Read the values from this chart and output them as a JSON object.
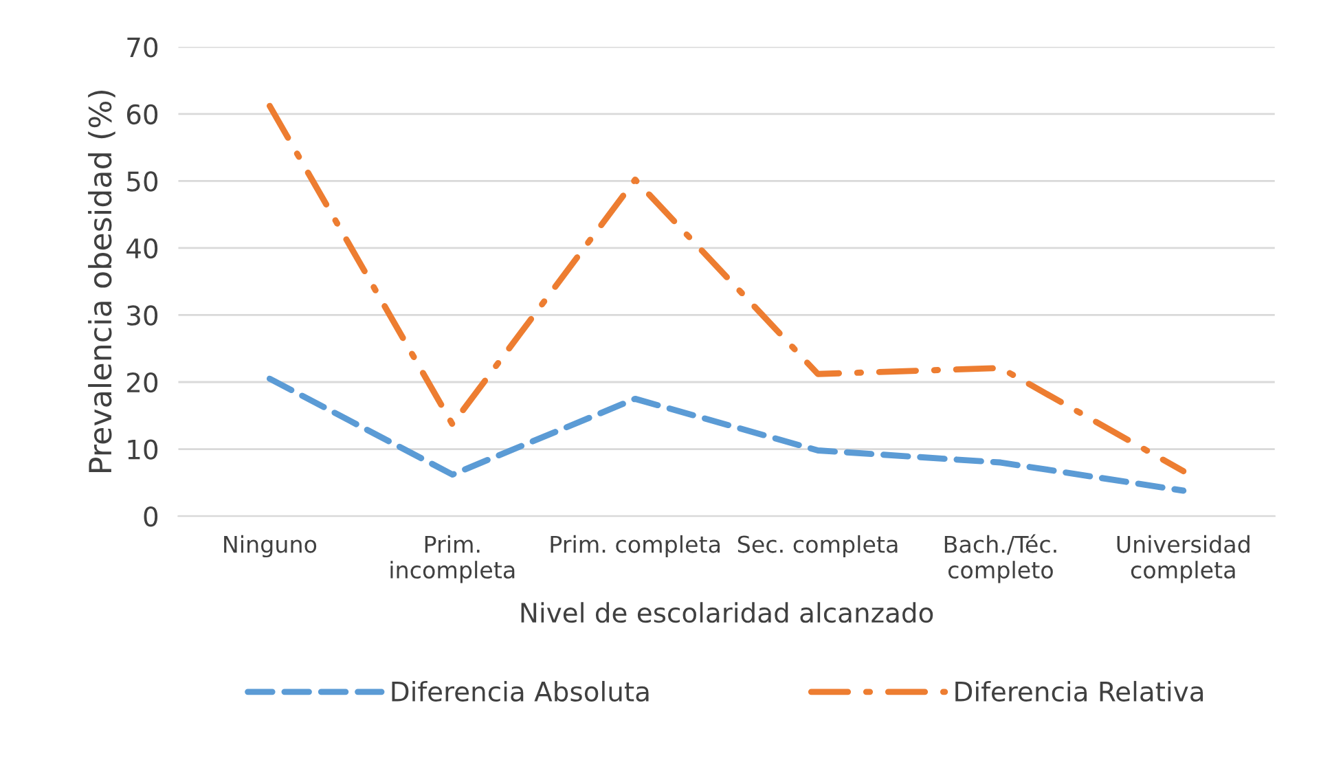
{
  "chart_data": {
    "type": "line",
    "xlabel": "Nivel de escolaridad alcanzado",
    "ylabel": "Prevalencia obesidad (%)",
    "categories": [
      "Ninguno",
      "Prim.\nincompleta",
      "Prim. completa",
      "Sec. completa",
      "Bach./Téc.\ncompleto",
      "Universidad\ncompleta"
    ],
    "series": [
      {
        "name": "Diferencia Absoluta",
        "color": "#5b9bd5",
        "line_style": "dashed",
        "values": [
          20.5,
          6.2,
          17.5,
          9.8,
          8,
          3.8
        ]
      },
      {
        "name": "Diferencia Relativa",
        "color": "#ed7d31",
        "line_style": "dashdot",
        "values": [
          61.2,
          13.7,
          50.2,
          21.2,
          22.1,
          6.7
        ]
      }
    ],
    "ylim": [
      0,
      70
    ],
    "yticks": [
      0,
      10,
      20,
      30,
      40,
      50,
      60,
      70
    ],
    "grid": "y",
    "legend": "bottom",
    "marker": "none"
  }
}
